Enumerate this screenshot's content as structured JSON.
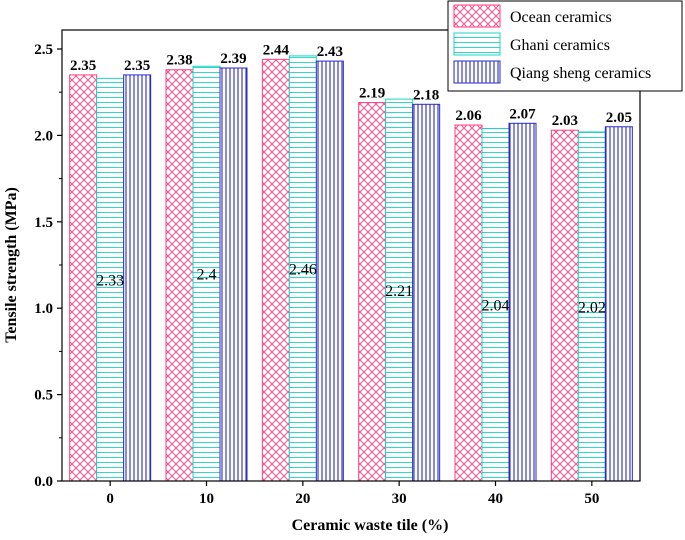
{
  "chart_data": {
    "type": "bar",
    "title": "",
    "xlabel": "Ceramic waste tile (%)",
    "ylabel": "Tensile strength (MPa)",
    "ylim": [
      0.0,
      2.5
    ],
    "yticks": [
      "0.0",
      "0.5",
      "1.0",
      "1.5",
      "2.0",
      "2.5"
    ],
    "categories": [
      "0",
      "10",
      "20",
      "30",
      "40",
      "50"
    ],
    "legend_position": "top-right",
    "series": [
      {
        "name": "Ocean ceramics",
        "values": [
          2.35,
          2.38,
          2.44,
          2.19,
          2.06,
          2.03
        ],
        "labels": [
          "2.35",
          "2.38",
          "2.44",
          "2.19",
          "2.06",
          "2.03"
        ],
        "color": "#ff3d7f",
        "pattern": "crosshatch",
        "label_placement": "top"
      },
      {
        "name": "Ghani ceramics",
        "values": [
          2.33,
          2.4,
          2.46,
          2.21,
          2.04,
          2.02
        ],
        "labels": [
          "2.33",
          "2.4",
          "2.46",
          "2.21",
          "2.04",
          "2.02"
        ],
        "color": "#19d4c4",
        "pattern": "horizontal",
        "label_placement": "middle"
      },
      {
        "name": "Qiang sheng ceramics",
        "values": [
          2.35,
          2.39,
          2.43,
          2.18,
          2.07,
          2.05
        ],
        "labels": [
          "2.35",
          "2.39",
          "2.43",
          "2.18",
          "2.07",
          "2.05"
        ],
        "color": "#2b2bc8",
        "pattern": "vertical",
        "label_placement": "top"
      }
    ]
  }
}
